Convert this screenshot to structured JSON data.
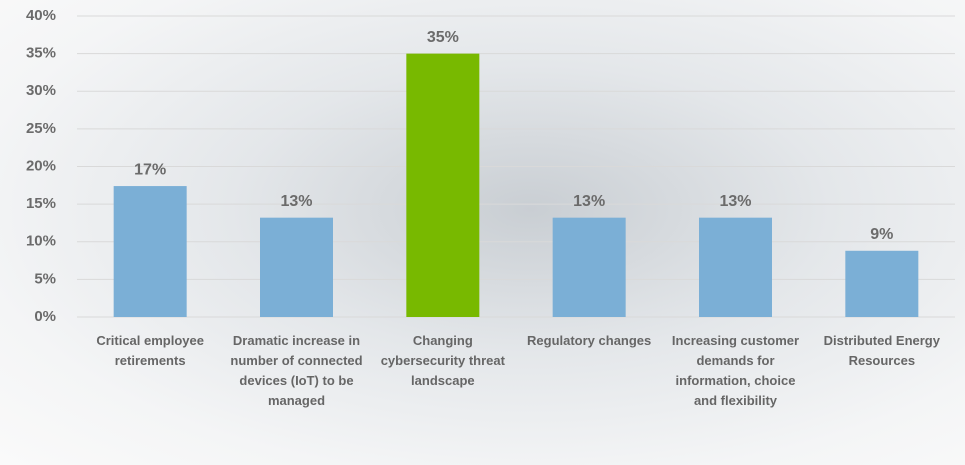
{
  "chart_data": {
    "type": "bar",
    "categories": [
      "Critical employee retirements",
      "Dramatic increase in number of connected devices (IoT) to be managed",
      "Changing cybersecurity threat landscape",
      "Regulatory changes",
      "Increasing customer demands for information, choice and flexibility",
      "Distributed Energy Resources"
    ],
    "values": [
      17.4,
      13.2,
      35,
      13.2,
      13.2,
      8.8
    ],
    "value_labels": [
      "17%",
      "13%",
      "35%",
      "13%",
      "13%",
      "9%"
    ],
    "colors": [
      "#7bafd6",
      "#7bafd6",
      "#78b900",
      "#7bafd6",
      "#7bafd6",
      "#7bafd6"
    ],
    "ylim": [
      0,
      40
    ],
    "yticks": [
      {
        "value": 0,
        "label": "0%"
      },
      {
        "value": 5,
        "label": "5%"
      },
      {
        "value": 10,
        "label": "10%"
      },
      {
        "value": 15,
        "label": "15%"
      },
      {
        "value": 20,
        "label": "20%"
      },
      {
        "value": 25,
        "label": "25%"
      },
      {
        "value": 30,
        "label": "30%"
      },
      {
        "value": 35,
        "label": "35%"
      },
      {
        "value": 40,
        "label": "40%"
      }
    ],
    "grid": true
  }
}
